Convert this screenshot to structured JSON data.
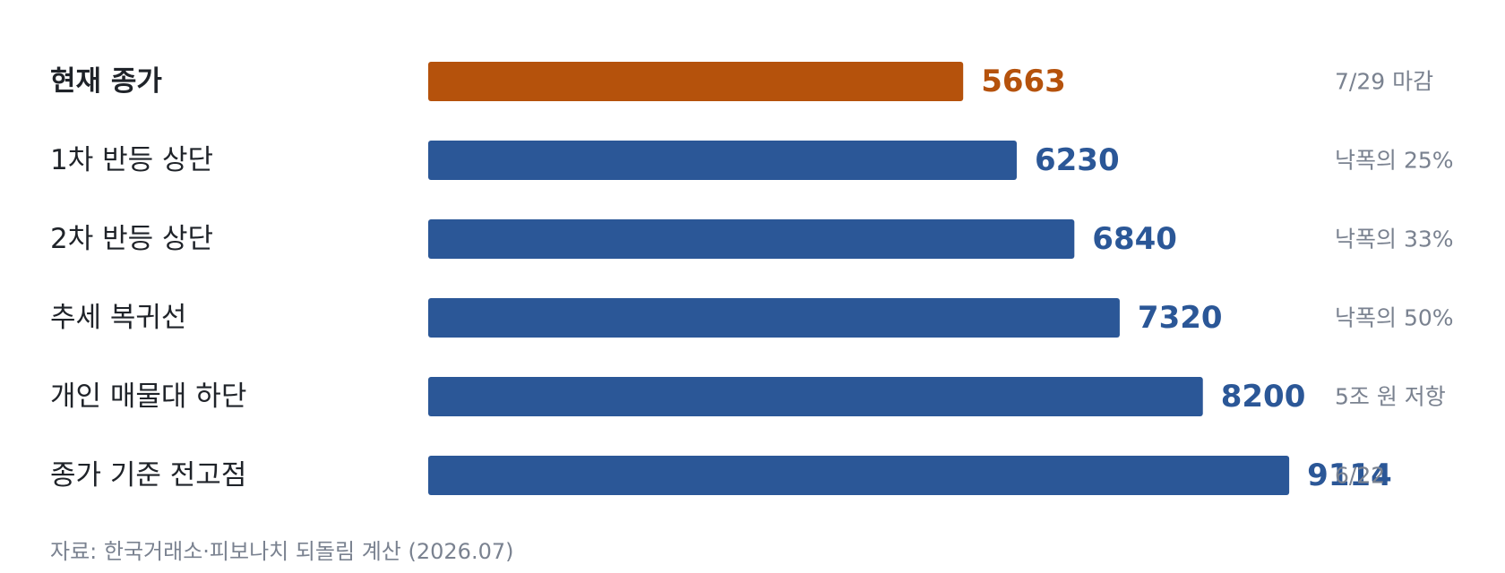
{
  "chart_data": {
    "type": "bar",
    "orientation": "horizontal",
    "categories": [
      "현재 종가",
      "1차 반등 상단",
      "2차 반등 상단",
      "추세 복귀선",
      "개인 매물대 하단",
      "종가 기준 전고점"
    ],
    "values": [
      5663,
      6230,
      6840,
      7320,
      8200,
      9114
    ],
    "notes": [
      "7/29 마감",
      "낙폭의 25%",
      "낙폭의 33%",
      "낙폭의 50%",
      "5조 원 저항",
      "6/22"
    ],
    "highlight_index": 0,
    "xlim": [
      0,
      11000
    ],
    "grid": false,
    "colors": {
      "highlight": "#b5520c",
      "default": "#2b5797"
    }
  },
  "source": "자료: 한국거래소·피보나치 되돌림 계산 (2026.07)"
}
